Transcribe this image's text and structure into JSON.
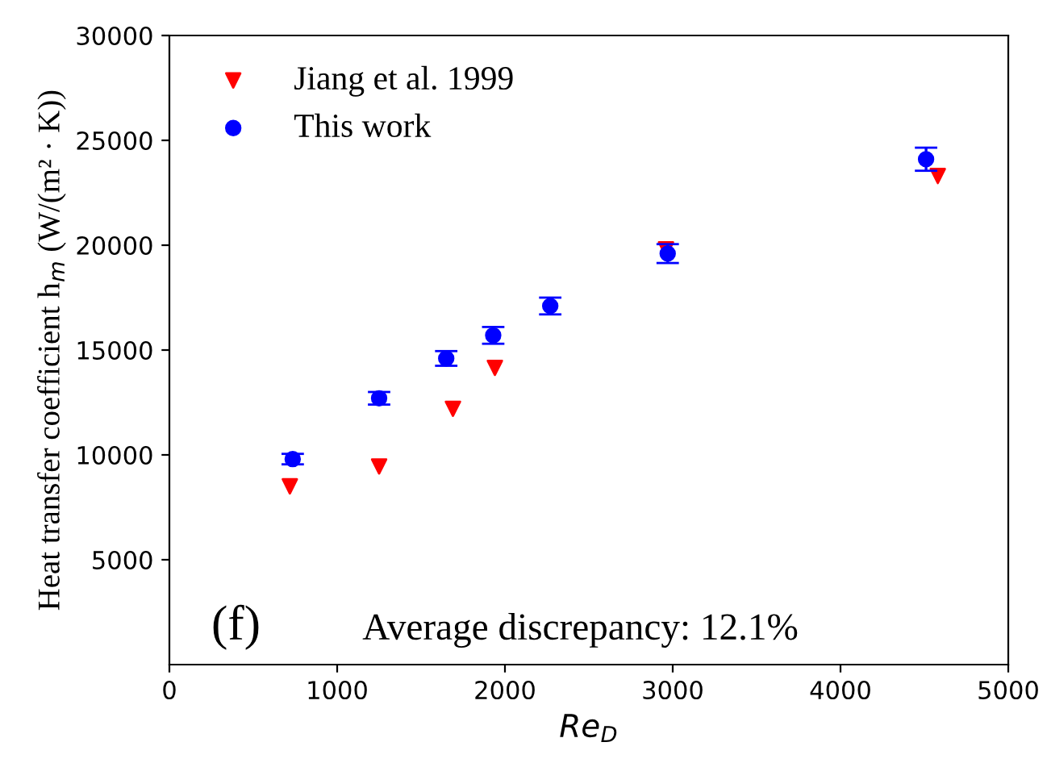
{
  "chart_data": {
    "type": "scatter",
    "xlabel": "Re$_{D}$",
    "ylabel": "Heat transfer coefficient h$_{m}$ (W/(m² · K))",
    "series": [
      {
        "name": "Jiang et al. 1999",
        "color": "#ff0000",
        "marker": "triangle",
        "x": [
          718,
          1250,
          1690,
          1940,
          2270,
          2960,
          4580
        ],
        "values": [
          8500,
          9450,
          12200,
          14150,
          null,
          19800,
          23300
        ]
      },
      {
        "name": "This work",
        "color": "#0000ff",
        "marker": "circle",
        "x": [
          735,
          1250,
          1650,
          1930,
          2270,
          2970,
          4510
        ],
        "values": [
          9800,
          12700,
          14600,
          15700,
          17100,
          19600,
          24100
        ],
        "errors": [
          250,
          300,
          350,
          400,
          400,
          450,
          550
        ]
      }
    ],
    "xlim": [
      0,
      5000
    ],
    "ylim": [
      0,
      30000
    ],
    "xticks": [
      0,
      1000,
      2000,
      3000,
      4000,
      5000
    ],
    "yticks": [
      5000,
      10000,
      15000,
      20000,
      25000,
      30000
    ],
    "grid": false,
    "legend": "top left",
    "annotations": [
      "(f)",
      "Average discrepancy: 12.1%"
    ]
  }
}
